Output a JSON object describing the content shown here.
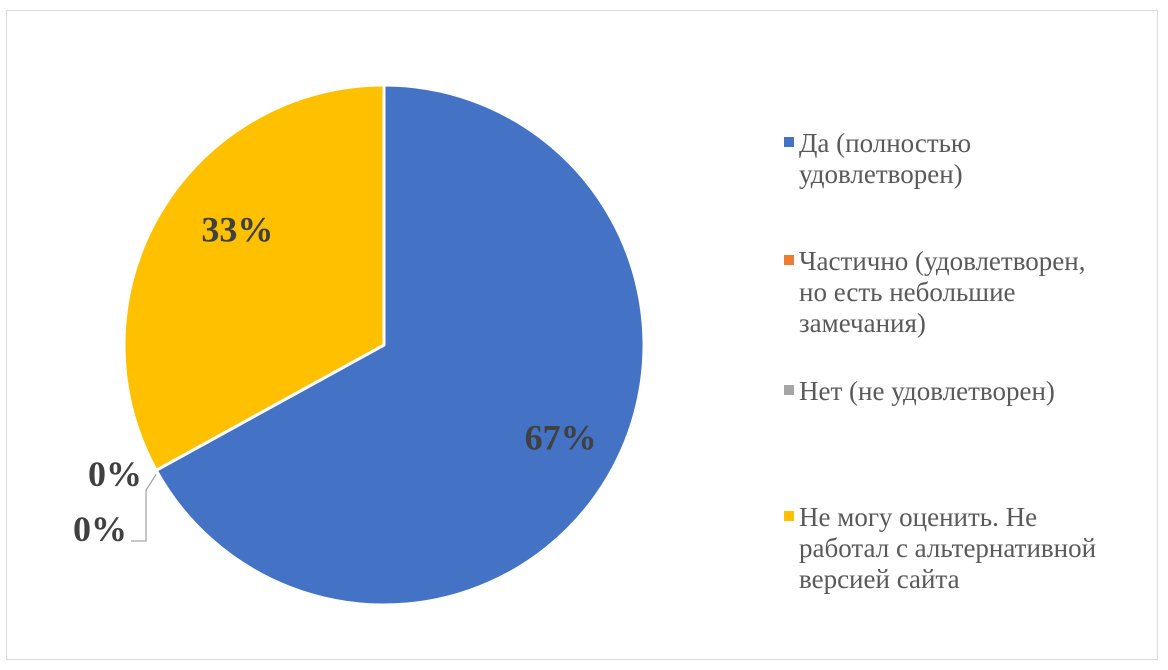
{
  "chart_data": {
    "type": "pie",
    "title": "",
    "slices": [
      {
        "label": "Да (полностью удовлетворен)",
        "value": 67,
        "display": "67%",
        "color": "#4472C4"
      },
      {
        "label": "Частично (удовлетворен, но есть небольшие замечания)",
        "value": 0,
        "display": "0%",
        "color": "#ED7D31"
      },
      {
        "label": "Нет (не удовлетворен)",
        "value": 0,
        "display": "0%",
        "color": "#A5A5A5"
      },
      {
        "label": "Не могу оценить. Не работал с альтернативной версией сайта",
        "value": 33,
        "display": "33%",
        "color": "#FFC000"
      }
    ],
    "start_angle_deg": 0,
    "direction": "clockwise",
    "legend_position": "right"
  },
  "legend": {
    "items": [
      {
        "text": "Да (полностью\nудовлетворен)",
        "color": "#4472C4"
      },
      {
        "text": "Частично (удовлетворен,\nно есть небольшие\nзамечания)",
        "color": "#ED7D31"
      },
      {
        "text": "Нет (не удовлетворен)",
        "color": "#A5A5A5"
      },
      {
        "text": "Не могу оценить. Не\nработал с альтернативной\nверсией сайта",
        "color": "#FFC000"
      }
    ]
  }
}
